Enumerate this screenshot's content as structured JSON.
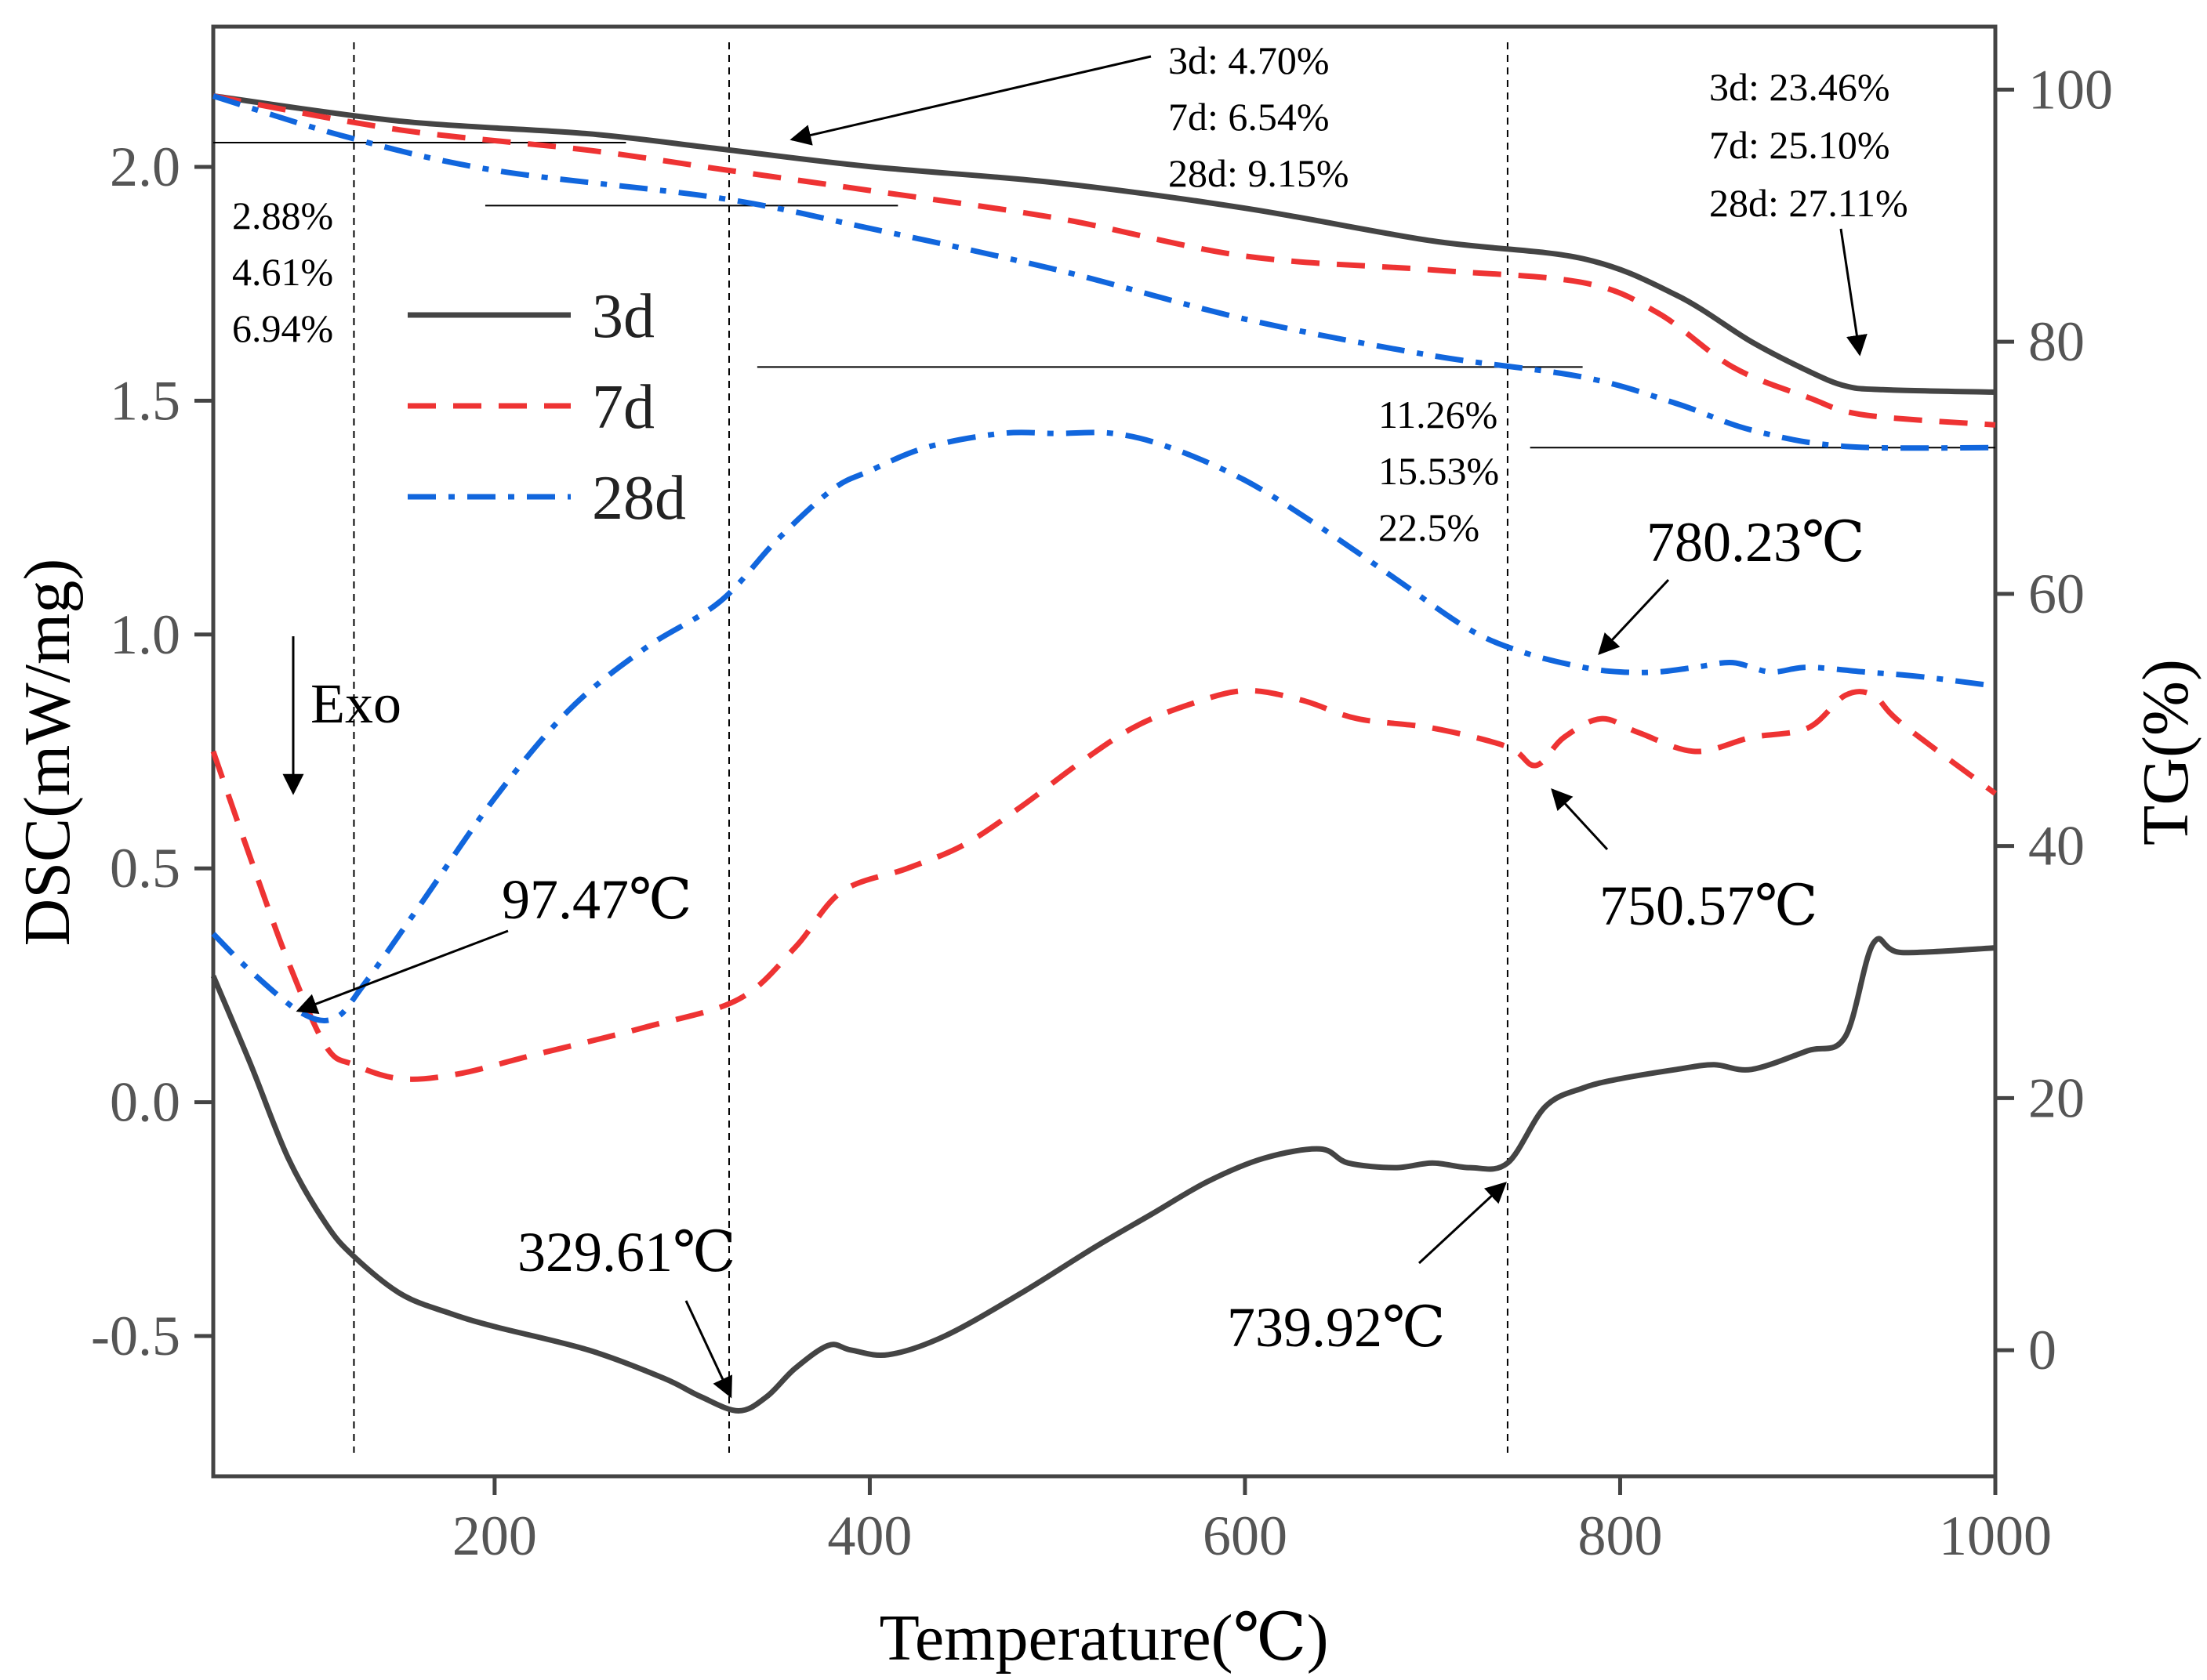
{
  "chart_data": {
    "type": "line",
    "xlabel": "Temperature(℃)",
    "ylabel_left": "DSC(mW/mg)",
    "ylabel_right": "TG(%)",
    "xlim": [
      50,
      1000
    ],
    "ylim_left": [
      -0.8,
      2.3
    ],
    "ylim_right": [
      -10,
      105
    ],
    "xticks": [
      200,
      400,
      600,
      800,
      1000
    ],
    "yticks_left": [
      -0.5,
      0.0,
      0.5,
      1.0,
      1.5,
      2.0
    ],
    "ytick_labels_left": [
      "-0.5",
      "0.0",
      "0.5",
      "1.0",
      "1.5",
      "2.0"
    ],
    "yticks_right": [
      0,
      20,
      40,
      60,
      80,
      100
    ],
    "ytick_labels_right": [
      "0",
      "20",
      "40",
      "60",
      "80",
      "100"
    ],
    "legend": [
      {
        "label": "3d",
        "color": "#444444",
        "style": "solid"
      },
      {
        "label": "7d",
        "color": "#ee3333",
        "style": "dash"
      },
      {
        "label": "28d",
        "color": "#1166dd",
        "style": "dashdot"
      }
    ],
    "series_dsc": [
      {
        "name": "3d",
        "color": "#444444",
        "style": "solid",
        "x": [
          50,
          70,
          90,
          110,
          125,
          150,
          175,
          200,
          250,
          290,
          310,
          330,
          345,
          360,
          378,
          390,
          410,
          440,
          480,
          520,
          550,
          580,
          610,
          640,
          655,
          680,
          700,
          720,
          740,
          760,
          780,
          800,
          830,
          850,
          870,
          900,
          920,
          935,
          950,
          1000
        ],
        "y": [
          0.27,
          0.08,
          -0.12,
          -0.26,
          -0.33,
          -0.41,
          -0.45,
          -0.48,
          -0.53,
          -0.59,
          -0.63,
          -0.66,
          -0.63,
          -0.57,
          -0.52,
          -0.53,
          -0.54,
          -0.5,
          -0.41,
          -0.31,
          -0.24,
          -0.17,
          -0.12,
          -0.1,
          -0.13,
          -0.14,
          -0.13,
          -0.14,
          -0.13,
          -0.01,
          0.03,
          0.05,
          0.07,
          0.08,
          0.07,
          0.11,
          0.14,
          0.34,
          0.32,
          0.33
        ]
      },
      {
        "name": "7d",
        "color": "#ee3333",
        "style": "dash",
        "x": [
          50,
          70,
          90,
          110,
          125,
          150,
          180,
          220,
          280,
          330,
          360,
          385,
          420,
          450,
          480,
          510,
          540,
          570,
          600,
          630,
          660,
          700,
          740,
          755,
          770,
          790,
          810,
          840,
          870,
          900,
          920,
          935,
          950,
          1000
        ],
        "y": [
          0.75,
          0.52,
          0.3,
          0.12,
          0.08,
          0.05,
          0.06,
          0.1,
          0.16,
          0.22,
          0.33,
          0.45,
          0.5,
          0.55,
          0.63,
          0.72,
          0.8,
          0.85,
          0.88,
          0.86,
          0.82,
          0.8,
          0.76,
          0.72,
          0.78,
          0.82,
          0.79,
          0.75,
          0.78,
          0.8,
          0.87,
          0.87,
          0.81,
          0.66
        ]
      },
      {
        "name": "28d",
        "color": "#1166dd",
        "style": "dashdot",
        "x": [
          50,
          70,
          97.47,
          115,
          130,
          160,
          200,
          240,
          280,
          320,
          350,
          380,
          400,
          430,
          470,
          500,
          530,
          560,
          600,
          640,
          680,
          720,
          750,
          780.23,
          800,
          820,
          840,
          860,
          880,
          900,
          930,
          960,
          1000
        ],
        "y": [
          0.36,
          0.28,
          0.19,
          0.18,
          0.25,
          0.42,
          0.65,
          0.84,
          0.97,
          1.07,
          1.2,
          1.31,
          1.35,
          1.4,
          1.43,
          1.43,
          1.43,
          1.4,
          1.33,
          1.23,
          1.12,
          1.01,
          0.96,
          0.93,
          0.92,
          0.92,
          0.93,
          0.94,
          0.92,
          0.93,
          0.92,
          0.91,
          0.89
        ]
      }
    ],
    "series_tg": [
      {
        "name": "3d",
        "color": "#444444",
        "style": "solid",
        "x": [
          50,
          150,
          250,
          320,
          400,
          500,
          600,
          700,
          780,
          830,
          870,
          900,
          920,
          940,
          1000
        ],
        "y": [
          99.5,
          97.5,
          96.5,
          95.3,
          93.9,
          92.6,
          90.6,
          88.0,
          86.6,
          83.7,
          80.0,
          77.7,
          76.5,
          76.2,
          76.0
        ]
      },
      {
        "name": "7d",
        "color": "#ee3333",
        "style": "dash",
        "x": [
          50,
          150,
          250,
          320,
          400,
          500,
          600,
          700,
          780,
          820,
          860,
          900,
          930,
          1000
        ],
        "y": [
          99.5,
          96.8,
          95.2,
          93.7,
          92.0,
          89.8,
          86.8,
          85.7,
          84.7,
          82.3,
          78.0,
          75.6,
          74.2,
          73.4
        ]
      },
      {
        "name": "28d",
        "color": "#1166dd",
        "style": "dashdot",
        "x": [
          50,
          120,
          200,
          320,
          400,
          500,
          600,
          700,
          780,
          830,
          870,
          920,
          1000
        ],
        "y": [
          99.5,
          96.3,
          93.6,
          91.4,
          89.0,
          85.7,
          81.8,
          78.9,
          77.2,
          75.1,
          73.0,
          71.7,
          71.6
        ]
      }
    ],
    "vertical_lines_x": [
      125,
      325,
      740
    ],
    "reference_lines_tg": [
      {
        "y": 95.8,
        "x": [
          50,
          270
        ]
      },
      {
        "y": 90.8,
        "x": [
          195,
          415
        ]
      },
      {
        "y": 78.0,
        "x": [
          340,
          780
        ]
      },
      {
        "y": 71.6,
        "x": [
          752,
          1000
        ]
      }
    ],
    "annotations": {
      "exo": "Exo",
      "dsc_peaks": [
        "97.47℃",
        "329.61℃",
        "739.92℃",
        "750.57℃",
        "780.23℃"
      ],
      "mass_loss_stage1": [
        "2.88%",
        "4.61%",
        "6.94%"
      ],
      "mass_loss_stage2": [
        "3d: 4.70%",
        "7d: 6.54%",
        "28d: 9.15%"
      ],
      "mass_loss_stage3": [
        "11.26%",
        "15.53%",
        "22.5%"
      ],
      "mass_loss_stage4": [
        "3d: 23.46%",
        "7d: 25.10%",
        "28d: 27.11%"
      ]
    }
  }
}
